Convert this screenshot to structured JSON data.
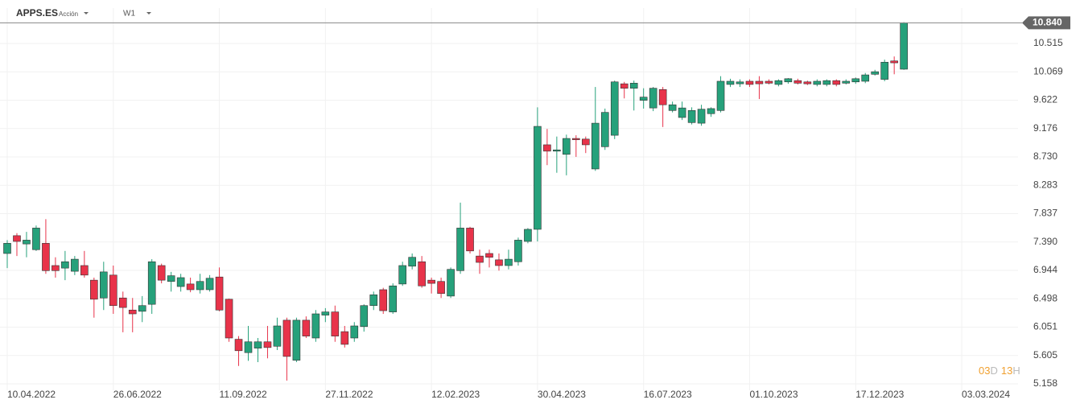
{
  "chart_data": {
    "type": "candlestick",
    "symbol": "APPS.ES",
    "instrument_type": "Acción",
    "timeframe": "W1",
    "countdown": [
      "03",
      "D",
      "13",
      "H"
    ],
    "price_label": {
      "value": 10.84,
      "label": "10.840"
    },
    "colors": {
      "up": "#26a17b",
      "down": "#e8334a"
    },
    "grid": true,
    "categories": [
      "10.04.2022",
      null,
      null,
      null,
      null,
      null,
      null,
      null,
      null,
      null,
      null,
      "26.06.2022",
      null,
      null,
      null,
      null,
      null,
      null,
      null,
      null,
      null,
      null,
      "11.09.2022",
      null,
      null,
      null,
      null,
      null,
      null,
      null,
      null,
      null,
      null,
      "27.11.2022",
      null,
      null,
      null,
      null,
      null,
      null,
      null,
      null,
      null,
      null,
      "12.02.2023",
      null,
      null,
      null,
      null,
      null,
      null,
      null,
      null,
      null,
      null,
      "30.04.2023",
      null,
      null,
      null,
      null,
      null,
      null,
      null,
      null,
      null,
      null,
      "16.07.2023",
      null,
      null,
      null,
      null,
      null,
      null,
      null,
      null,
      null,
      null,
      "01.10.2023",
      null,
      null,
      null,
      null,
      null,
      null,
      null,
      null,
      null,
      null,
      "17.12.2023",
      null,
      null,
      null,
      null,
      null,
      null,
      null,
      null,
      null,
      null,
      "03.03.2024"
    ],
    "open": [
      7.21,
      7.49,
      7.36,
      7.27,
      7.37,
      7.02,
      6.98,
      6.93,
      7.02,
      6.79,
      6.51,
      6.87,
      6.51,
      6.32,
      6.3,
      6.41,
      7.02,
      6.77,
      6.69,
      6.73,
      6.64,
      6.64,
      6.84,
      6.49,
      5.86,
      5.65,
      5.72,
      5.82,
      5.75,
      6.16,
      5.53,
      6.16,
      5.88,
      6.24,
      6.29,
      5.98,
      5.88,
      6.06,
      6.39,
      6.64,
      6.29,
      6.73,
      7.01,
      7.08,
      6.79,
      6.77,
      6.54,
      6.94,
      7.61,
      7.17,
      7.21,
      7.11,
      7.02,
      7.08,
      7.4,
      7.59,
      8.92,
      8.82,
      8.77,
      9.02,
      9.01,
      8.54,
      8.89,
      9.07,
      9.88,
      9.81,
      9.62,
      9.5,
      9.79,
      9.46,
      9.35,
      9.27,
      9.26,
      9.41,
      9.46,
      9.87,
      9.88,
      9.92,
      9.92,
      9.92,
      9.87,
      9.91,
      9.93,
      9.91,
      9.87,
      9.87,
      9.93,
      9.89,
      9.91,
      9.92,
      10.03,
      9.95,
      10.24,
      10.11,
      null,
      null,
      null,
      null,
      null,
      null
    ],
    "high": [
      7.42,
      7.53,
      7.55,
      7.65,
      7.75,
      7.15,
      7.25,
      7.17,
      7.25,
      6.83,
      7.08,
      7.02,
      6.61,
      6.51,
      6.54,
      7.12,
      7.05,
      6.92,
      6.89,
      6.83,
      6.89,
      6.87,
      6.99,
      6.5,
      5.91,
      6.07,
      5.88,
      6.07,
      6.2,
      6.2,
      6.2,
      6.22,
      6.32,
      6.35,
      6.39,
      6.07,
      6.13,
      6.41,
      6.61,
      6.67,
      6.74,
      7.08,
      7.21,
      7.17,
      6.83,
      6.83,
      6.99,
      8.01,
      7.63,
      7.27,
      7.27,
      7.21,
      7.27,
      7.46,
      7.61,
      9.51,
      9.17,
      9.05,
      9.08,
      9.07,
      9.05,
      9.83,
      9.49,
      9.93,
      9.91,
      9.93,
      9.81,
      9.83,
      9.83,
      9.6,
      9.6,
      9.51,
      9.55,
      9.51,
      10.0,
      9.96,
      9.95,
      9.95,
      10.0,
      9.95,
      9.95,
      9.97,
      9.96,
      9.93,
      9.95,
      9.95,
      9.95,
      9.95,
      9.98,
      10.05,
      10.1,
      10.26,
      10.31,
      10.85,
      null,
      null,
      null,
      null,
      null,
      null
    ],
    "low": [
      6.98,
      7.17,
      7.15,
      7.25,
      6.89,
      6.83,
      6.79,
      6.87,
      6.83,
      6.2,
      6.32,
      6.26,
      5.97,
      5.97,
      6.13,
      6.26,
      6.74,
      6.61,
      6.61,
      6.6,
      6.58,
      6.61,
      6.3,
      5.82,
      5.44,
      5.52,
      5.5,
      5.56,
      5.69,
      5.21,
      5.5,
      5.88,
      5.82,
      6.13,
      5.82,
      5.73,
      5.82,
      5.98,
      6.32,
      6.26,
      6.26,
      6.7,
      6.96,
      6.67,
      6.58,
      6.51,
      6.51,
      6.89,
      7.21,
      6.89,
      6.99,
      6.94,
      6.96,
      7.02,
      7.37,
      7.4,
      8.6,
      8.48,
      8.44,
      8.73,
      8.79,
      8.51,
      8.84,
      9.01,
      9.65,
      9.46,
      9.49,
      9.45,
      9.2,
      9.43,
      9.31,
      9.24,
      9.22,
      9.36,
      9.43,
      9.83,
      9.83,
      9.83,
      9.64,
      9.87,
      9.84,
      9.88,
      9.87,
      9.86,
      9.84,
      9.84,
      9.84,
      9.87,
      9.88,
      9.89,
      10.01,
      9.92,
      10.03,
      10.1,
      null,
      null,
      null,
      null,
      null,
      null
    ],
    "close": [
      7.37,
      7.4,
      7.42,
      7.61,
      6.94,
      6.94,
      7.08,
      7.12,
      6.87,
      6.49,
      6.92,
      6.39,
      6.36,
      6.26,
      6.39,
      7.08,
      6.79,
      6.86,
      6.83,
      6.64,
      6.77,
      6.82,
      6.32,
      5.88,
      5.68,
      5.82,
      5.82,
      5.73,
      6.07,
      5.59,
      6.16,
      5.91,
      6.26,
      6.29,
      5.91,
      5.78,
      6.07,
      6.39,
      6.56,
      6.31,
      6.7,
      7.02,
      7.15,
      6.7,
      6.74,
      6.58,
      6.96,
      7.61,
      7.25,
      7.07,
      7.15,
      7.02,
      7.12,
      7.42,
      7.59,
      9.21,
      8.82,
      8.84,
      9.02,
      9.0,
      8.92,
      9.26,
      9.43,
      9.91,
      9.81,
      9.89,
      9.67,
      9.81,
      9.55,
      9.55,
      9.5,
      9.46,
      9.48,
      9.49,
      9.92,
      9.92,
      9.91,
      9.87,
      9.88,
      9.89,
      9.93,
      9.96,
      9.89,
      9.88,
      9.92,
      9.93,
      9.87,
      9.92,
      9.96,
      10.02,
      10.07,
      10.22,
      10.21,
      10.84,
      null,
      null,
      null,
      null,
      null,
      null
    ],
    "ylim": [
      5.057,
      11.072
    ],
    "yticks": [
      5.158,
      5.605,
      6.051,
      6.498,
      6.944,
      {
        "value": 7.39,
        "label": "7.390"
      },
      7.837,
      8.283,
      {
        "value": 8.73,
        "label": "8.730"
      },
      9.176,
      9.622,
      10.069,
      10.515
    ]
  }
}
